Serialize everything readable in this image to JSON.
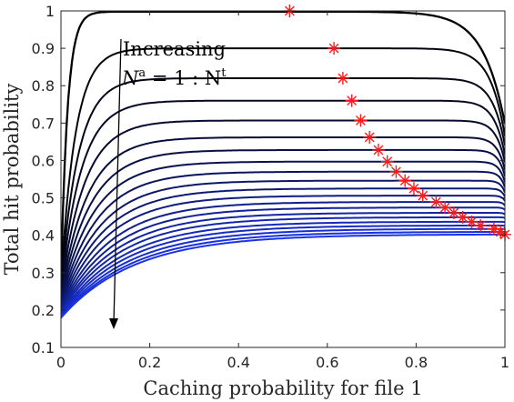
{
  "chart_data": {
    "type": "line",
    "xlabel": "Caching probability for file 1",
    "ylabel": "Total hit probability",
    "xlim": [
      0,
      1
    ],
    "ylim": [
      0.1,
      1
    ],
    "xticks": [
      "0",
      "0.2",
      "0.4",
      "0.6",
      "0.8",
      "1"
    ],
    "yticks": [
      "0.1",
      "0.2",
      "0.3",
      "0.4",
      "0.5",
      "0.6",
      "0.7",
      "0.8",
      "0.9",
      "1"
    ],
    "grid": false,
    "annotation": {
      "line1": "Increasing",
      "line2_prefix": "N",
      "line2_sup1": "a",
      "line2_mid": " = 1 : N",
      "line2_sup2": "t"
    },
    "series_style": {
      "first_color": "#000000",
      "last_color": "#1a33e6",
      "marker_color": "#ff1a1a"
    },
    "series": [
      {
        "start": 0.28,
        "plateau": 1.0,
        "peak_x": 0.515,
        "end": 0.7
      },
      {
        "start": 0.272,
        "plateau": 0.9,
        "peak_x": 0.62,
        "end": 0.665
      },
      {
        "start": 0.264,
        "plateau": 0.82,
        "peak_x": 0.635,
        "end": 0.64
      },
      {
        "start": 0.256,
        "plateau": 0.76,
        "peak_x": 0.655,
        "end": 0.615
      },
      {
        "start": 0.249,
        "plateau": 0.707,
        "peak_x": 0.675,
        "end": 0.595
      },
      {
        "start": 0.242,
        "plateau": 0.662,
        "peak_x": 0.69,
        "end": 0.575
      },
      {
        "start": 0.236,
        "plateau": 0.628,
        "peak_x": 0.71,
        "end": 0.558
      },
      {
        "start": 0.23,
        "plateau": 0.597,
        "peak_x": 0.73,
        "end": 0.542
      },
      {
        "start": 0.224,
        "plateau": 0.57,
        "peak_x": 0.75,
        "end": 0.528
      },
      {
        "start": 0.219,
        "plateau": 0.546,
        "peak_x": 0.77,
        "end": 0.515
      },
      {
        "start": 0.214,
        "plateau": 0.525,
        "peak_x": 0.79,
        "end": 0.503
      },
      {
        "start": 0.209,
        "plateau": 0.506,
        "peak_x": 0.81,
        "end": 0.492
      },
      {
        "start": 0.205,
        "plateau": 0.489,
        "peak_x": 0.84,
        "end": 0.48
      },
      {
        "start": 0.201,
        "plateau": 0.474,
        "peak_x": 0.86,
        "end": 0.468
      },
      {
        "start": 0.197,
        "plateau": 0.46,
        "peak_x": 0.88,
        "end": 0.456
      },
      {
        "start": 0.194,
        "plateau": 0.448,
        "peak_x": 0.9,
        "end": 0.446
      },
      {
        "start": 0.19,
        "plateau": 0.436,
        "peak_x": 0.92,
        "end": 0.435
      },
      {
        "start": 0.187,
        "plateau": 0.426,
        "peak_x": 0.94,
        "end": 0.425
      },
      {
        "start": 0.184,
        "plateau": 0.417,
        "peak_x": 0.97,
        "end": 0.417
      },
      {
        "start": 0.181,
        "plateau": 0.409,
        "peak_x": 0.99,
        "end": 0.409
      },
      {
        "start": 0.179,
        "plateau": 0.402,
        "peak_x": 1.0,
        "end": 0.402
      }
    ],
    "markers": [
      {
        "x": 0.515,
        "y": 1.0
      },
      {
        "x": 0.615,
        "y": 0.9
      },
      {
        "x": 0.635,
        "y": 0.82
      },
      {
        "x": 0.655,
        "y": 0.76
      },
      {
        "x": 0.675,
        "y": 0.707
      },
      {
        "x": 0.695,
        "y": 0.662
      },
      {
        "x": 0.715,
        "y": 0.628
      },
      {
        "x": 0.735,
        "y": 0.597
      },
      {
        "x": 0.755,
        "y": 0.57
      },
      {
        "x": 0.775,
        "y": 0.546
      },
      {
        "x": 0.795,
        "y": 0.525
      },
      {
        "x": 0.815,
        "y": 0.506
      },
      {
        "x": 0.845,
        "y": 0.489
      },
      {
        "x": 0.865,
        "y": 0.474
      },
      {
        "x": 0.885,
        "y": 0.46
      },
      {
        "x": 0.905,
        "y": 0.448
      },
      {
        "x": 0.925,
        "y": 0.436
      },
      {
        "x": 0.945,
        "y": 0.426
      },
      {
        "x": 0.975,
        "y": 0.417
      },
      {
        "x": 0.99,
        "y": 0.409
      },
      {
        "x": 1.0,
        "y": 0.402
      }
    ]
  }
}
